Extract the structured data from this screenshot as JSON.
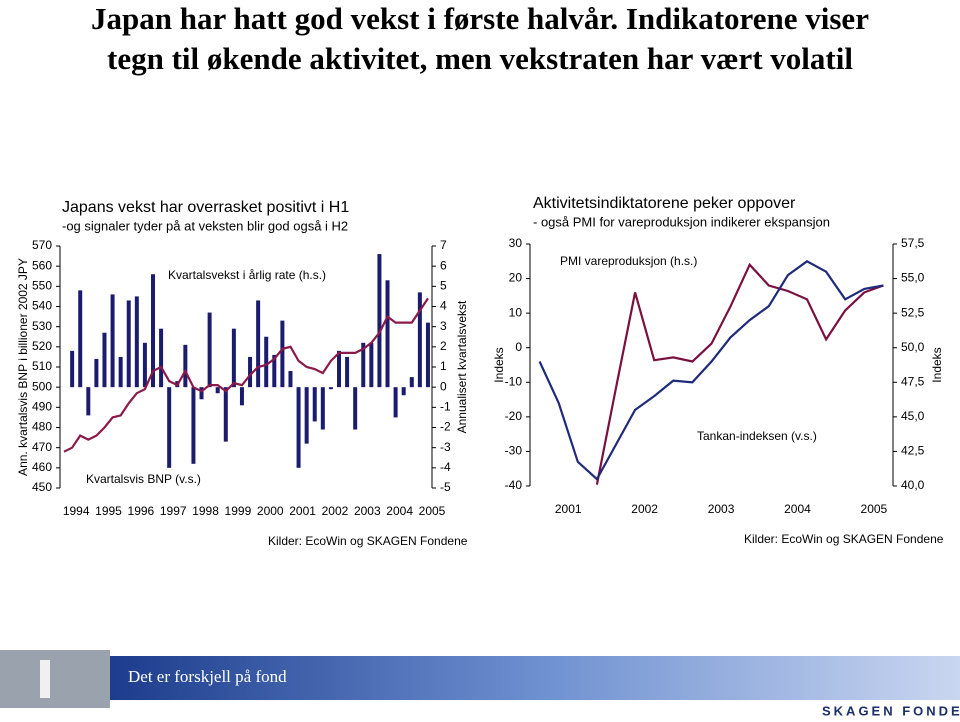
{
  "title_lines": [
    "Japan har hatt god vekst i første halvår. Indikatorene viser",
    "tegn til økende aktivitet, men vekstraten har vært volatil"
  ],
  "chart_data": [
    {
      "type": "bar",
      "title": "Japans vekst har overrasket positivt i H1",
      "subtitle": "-og signaler tyder på at veksten blir god også i H2",
      "ylabel": "Ann. kvartalsvis BNP i billioner 2002 JPY",
      "y2label": "Annualisert kvartalsvekst",
      "source": "Kilder: EcoWin og SKAGEN Fondene",
      "categories": [
        "1994",
        null,
        null,
        null,
        "1995",
        null,
        null,
        null,
        "1996",
        null,
        null,
        null,
        "1997",
        null,
        null,
        null,
        "1998",
        null,
        null,
        null,
        "1999",
        null,
        null,
        null,
        "2000",
        null,
        null,
        null,
        "2001",
        null,
        null,
        null,
        "2002",
        null,
        null,
        null,
        "2003",
        null,
        null,
        null,
        "2004",
        null,
        null,
        null,
        "2005",
        null
      ],
      "ylim": [
        450,
        570
      ],
      "yticks": [
        450,
        460,
        470,
        480,
        490,
        500,
        510,
        520,
        530,
        540,
        550,
        560,
        570
      ],
      "y2lim": [
        -5,
        7
      ],
      "y2ticks": [
        -5,
        -4,
        -3,
        -2,
        -1,
        0,
        1,
        2,
        3,
        4,
        5,
        6,
        7
      ],
      "series": [
        {
          "name": "Kvartalsvekst i årlig rate (h.s.)",
          "type": "bar",
          "axis": "y2",
          "color": "#1c1c6e",
          "values": [
            null,
            1.8,
            4.8,
            -1.4,
            1.4,
            2.7,
            4.6,
            1.5,
            4.3,
            4.5,
            2.2,
            5.6,
            2.9,
            -4.0,
            0.3,
            2.1,
            -3.8,
            -0.6,
            3.7,
            -0.3,
            -2.7,
            2.9,
            -0.9,
            1.5,
            4.3,
            2.5,
            1.6,
            3.3,
            0.8,
            -4.0,
            -2.8,
            -1.7,
            -2.1,
            -0.1,
            1.8,
            1.5,
            -2.1,
            2.2,
            2.2,
            6.6,
            5.3,
            -1.5,
            -0.4,
            0.5,
            4.7,
            3.2
          ]
        },
        {
          "name": "Kvartalsvis BNP (v.s.)",
          "type": "line",
          "color": "#8b1a4a",
          "values": [
            468,
            470,
            476,
            474,
            476,
            480,
            485,
            486,
            492,
            497,
            499,
            508,
            510,
            503,
            501,
            508,
            500,
            498,
            501,
            501,
            498,
            502,
            501,
            506,
            510,
            511,
            514,
            519,
            520,
            513,
            510,
            509,
            507,
            513,
            517,
            517,
            517,
            519,
            522,
            527,
            535,
            532,
            532,
            532,
            538,
            544
          ]
        }
      ]
    },
    {
      "type": "line",
      "title": "Aktivitetsindiktatorene peker oppover",
      "subtitle": "- også PMI for vareproduksjon indikerer ekspansjon",
      "ylabel": "Indeks",
      "y2label": "Indeks",
      "source": "Kilder: EcoWin og SKAGEN Fondene",
      "categories": [
        null,
        "2001",
        null,
        null,
        null,
        "2002",
        null,
        null,
        null,
        "2003",
        null,
        null,
        null,
        "2004",
        null,
        null,
        null,
        "2005",
        null
      ],
      "ylim": [
        -40,
        30
      ],
      "yticks": [
        -40,
        -30,
        -20,
        -10,
        0,
        10,
        20,
        30
      ],
      "y2lim": [
        40,
        57.5
      ],
      "y2ticks": [
        {
          "value": 40,
          "label": "40,0"
        },
        {
          "value": 42.5,
          "label": "42,5"
        },
        {
          "value": 45,
          "label": "45,0"
        },
        {
          "value": 47.5,
          "label": "47,5"
        },
        {
          "value": 50,
          "label": "50,0"
        },
        {
          "value": 52.5,
          "label": "52,5"
        },
        {
          "value": 55,
          "label": "55,0"
        },
        {
          "value": 57.5,
          "label": "57,5"
        }
      ],
      "series": [
        {
          "name": "PMI vareproduksjon (h.s.)",
          "type": "line",
          "axis": "y2",
          "color": "#7a1040",
          "values": [
            null,
            null,
            null,
            40.1,
            47.1,
            54.0,
            49.1,
            49.3,
            49.0,
            50.3,
            53.0,
            56.0,
            54.5,
            54.1,
            53.5,
            50.6,
            52.7,
            54.0,
            54.5
          ]
        },
        {
          "name": "Tankan-indeksen (v.s.)",
          "type": "line",
          "color": "#1f2a7a",
          "values": [
            -4,
            -16,
            -33,
            -38,
            -28,
            -18,
            -14,
            -9.5,
            -10,
            -4,
            3,
            8,
            12,
            21,
            25,
            22,
            14,
            17,
            18
          ]
        }
      ]
    }
  ],
  "footer": {
    "text": "Det er forskjell på fond",
    "logo": "SKAGEN FONDENE"
  }
}
